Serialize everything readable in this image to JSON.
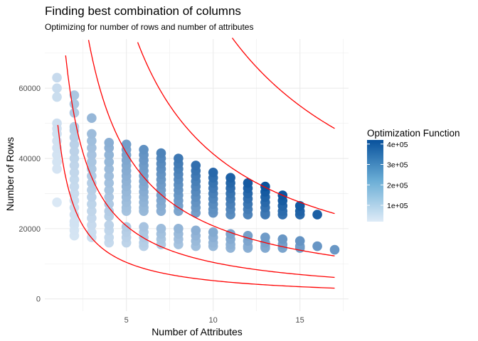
{
  "chart_data": {
    "type": "scatter",
    "title": "Finding best combination of columns",
    "subtitle": "Optimizing for number of rows and number of attributes",
    "xlabel": "Number of Attributes",
    "ylabel": "Number of Rows",
    "xlim": [
      0.3,
      17.8
    ],
    "ylim": [
      -3500,
      74000
    ],
    "x_ticks": [
      5,
      10,
      15
    ],
    "x_tick_labels": [
      "5",
      "10",
      "15"
    ],
    "y_ticks": [
      0,
      20000,
      40000,
      60000
    ],
    "y_tick_labels": [
      "0",
      "20000",
      "40000",
      "60000"
    ],
    "grid": true,
    "legend": {
      "title": "Optimization Function",
      "position": "right",
      "type": "colorbar",
      "range": [
        20000,
        420000
      ],
      "ticks": [
        100000,
        200000,
        300000,
        400000
      ],
      "tick_labels": [
        "1e+05",
        "2e+05",
        "3e+05",
        "4e+05"
      ],
      "color_low": "#deebf7",
      "color_high": "#08519c"
    },
    "colors": {
      "curves": "#ff0000",
      "grid": "#ebebeb",
      "point_low": "#deebf7",
      "point_high": "#08519c"
    },
    "points": [
      {
        "x": 1,
        "y": [
          63000,
          60000,
          57500,
          50000,
          48500,
          47000,
          45000,
          43000,
          41000,
          39000,
          37000,
          27500
        ]
      },
      {
        "x": 2,
        "y": [
          58000,
          55500,
          53000,
          49000,
          48000,
          46000,
          44000,
          42000,
          40000,
          38000,
          36000,
          34000,
          32000,
          30000,
          28000,
          26000,
          24000,
          22000,
          21000,
          19500,
          18000
        ]
      },
      {
        "x": 3,
        "y": [
          51500,
          47000,
          45000,
          43000,
          41000,
          39000,
          37000,
          35000,
          33000,
          31000,
          29000,
          27000,
          25000,
          23000,
          21000,
          19000,
          17500
        ]
      },
      {
        "x": 4,
        "y": [
          44500,
          43000,
          41000,
          39000,
          37000,
          35000,
          33000,
          31000,
          29000,
          27000,
          25000,
          23500,
          21000,
          19500,
          17500,
          16000
        ]
      },
      {
        "x": 5,
        "y": [
          44000,
          42500,
          41000,
          39500,
          38000,
          36500,
          35000,
          33500,
          32000,
          30500,
          29000,
          27500,
          26000,
          25000,
          20500,
          19000,
          17500,
          16000
        ]
      },
      {
        "x": 6,
        "y": [
          42500,
          41000,
          39500,
          38000,
          36500,
          35000,
          33500,
          32000,
          30500,
          29000,
          27500,
          26000,
          25000,
          20500,
          19000,
          17500,
          16000,
          15000
        ]
      },
      {
        "x": 7,
        "y": [
          41500,
          40000,
          38500,
          37000,
          35500,
          34000,
          32500,
          31000,
          29500,
          28000,
          26500,
          25000,
          20000,
          18500,
          17000,
          15500
        ]
      },
      {
        "x": 8,
        "y": [
          40000,
          38500,
          37000,
          35500,
          34000,
          32500,
          31000,
          29500,
          28000,
          26500,
          25000,
          20000,
          18500,
          17000,
          15500
        ]
      },
      {
        "x": 9,
        "y": [
          38000,
          36500,
          35000,
          33500,
          32000,
          30500,
          29000,
          27500,
          26000,
          24500,
          19500,
          18000,
          16500,
          15000
        ]
      },
      {
        "x": 10,
        "y": [
          36000,
          34500,
          33000,
          31500,
          30000,
          28500,
          27000,
          25500,
          24500,
          19000,
          17500,
          16000,
          15000
        ]
      },
      {
        "x": 11,
        "y": [
          34500,
          33000,
          31500,
          30000,
          28500,
          27000,
          25500,
          24000,
          18500,
          17000,
          15500,
          14500
        ]
      },
      {
        "x": 12,
        "y": [
          33000,
          31500,
          30000,
          28500,
          27000,
          25500,
          24000,
          18000,
          16500,
          15000,
          14500
        ]
      },
      {
        "x": 13,
        "y": [
          32000,
          30500,
          29000,
          27500,
          26000,
          24500,
          24000,
          17500,
          16000,
          15000,
          14500
        ]
      },
      {
        "x": 14,
        "y": [
          29500,
          28000,
          26500,
          25000,
          24000,
          17000,
          15500,
          14500
        ]
      },
      {
        "x": 15,
        "y": [
          26500,
          25000,
          24000,
          16500,
          15000,
          14500
        ]
      },
      {
        "x": 16,
        "y": [
          24000,
          15000
        ]
      },
      {
        "x": 17,
        "y": [
          14000
        ]
      }
    ],
    "curves": [
      {
        "k": 52000,
        "x_range": [
          1.05,
          17
        ]
      },
      {
        "k": 104000,
        "x_range": [
          1.5,
          17
        ]
      },
      {
        "k": 208000,
        "x_range": [
          2.82,
          17
        ]
      },
      {
        "k": 413000,
        "x_range": [
          5.65,
          17
        ]
      },
      {
        "k": 825000,
        "x_range": [
          11.1,
          17
        ]
      }
    ]
  }
}
